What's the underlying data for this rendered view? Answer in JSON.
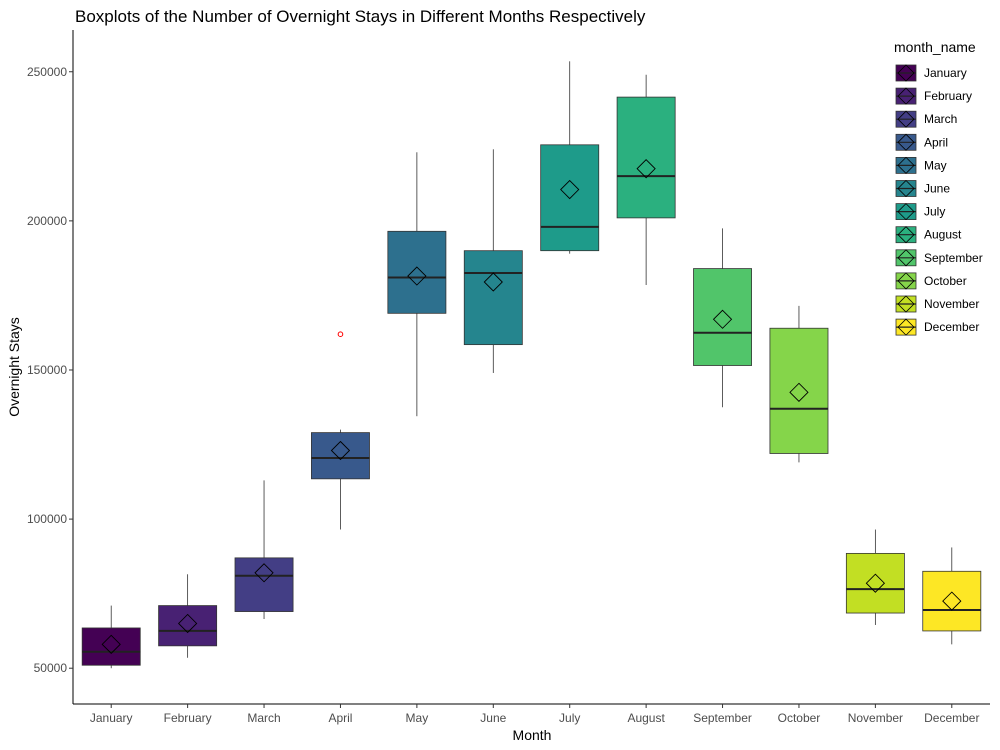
{
  "chart_data": {
    "type": "boxplot",
    "title": "Boxplots of the Number of Overnight Stays in Different Months Respectively",
    "xlabel": "Month",
    "ylabel": "Overnight Stays",
    "ylim": [
      38000,
      264000
    ],
    "y_ticks": [
      50000,
      100000,
      150000,
      200000,
      250000
    ],
    "y_tick_labels": [
      "50000",
      "100000",
      "150000",
      "200000",
      "250000"
    ],
    "grid": false,
    "legend": {
      "title": "month_name",
      "position": "right-top"
    },
    "mean_marker": "diamond",
    "outlier_color": "#ff0000",
    "categories": [
      "January",
      "February",
      "March",
      "April",
      "May",
      "June",
      "July",
      "August",
      "September",
      "October",
      "November",
      "December"
    ],
    "boxes": [
      {
        "name": "January",
        "color": "#440154",
        "min": 50000,
        "q1": 51000,
        "median": 55500,
        "q3": 63500,
        "max": 71000,
        "mean": 58000,
        "outliers": []
      },
      {
        "name": "February",
        "color": "#482173",
        "min": 53500,
        "q1": 57500,
        "median": 62500,
        "q3": 71000,
        "max": 81500,
        "mean": 65000,
        "outliers": []
      },
      {
        "name": "March",
        "color": "#433E85",
        "min": 66500,
        "q1": 69000,
        "median": 81000,
        "q3": 87000,
        "max": 113000,
        "mean": 82000,
        "outliers": []
      },
      {
        "name": "April",
        "color": "#38598C",
        "min": 96500,
        "q1": 113500,
        "median": 120500,
        "q3": 129000,
        "max": 130000,
        "mean": 123000,
        "outliers": [
          162000
        ]
      },
      {
        "name": "May",
        "color": "#2D708E",
        "min": 134500,
        "q1": 169000,
        "median": 181000,
        "q3": 196500,
        "max": 223000,
        "mean": 181500,
        "outliers": []
      },
      {
        "name": "June",
        "color": "#25858E",
        "min": 149000,
        "q1": 158500,
        "median": 182500,
        "q3": 190000,
        "max": 224000,
        "mean": 179500,
        "outliers": []
      },
      {
        "name": "July",
        "color": "#1E9B8A",
        "min": 189000,
        "q1": 190000,
        "median": 198000,
        "q3": 225500,
        "max": 253500,
        "mean": 210500,
        "outliers": []
      },
      {
        "name": "August",
        "color": "#2BB07F",
        "min": 178500,
        "q1": 201000,
        "median": 215000,
        "q3": 241500,
        "max": 249000,
        "mean": 217500,
        "outliers": []
      },
      {
        "name": "September",
        "color": "#51C56A",
        "min": 137500,
        "q1": 151500,
        "median": 162500,
        "q3": 184000,
        "max": 197500,
        "mean": 167000,
        "outliers": []
      },
      {
        "name": "October",
        "color": "#85D54A",
        "min": 119000,
        "q1": 122000,
        "median": 137000,
        "q3": 164000,
        "max": 171500,
        "mean": 142500,
        "outliers": []
      },
      {
        "name": "November",
        "color": "#C2DF23",
        "min": 64500,
        "q1": 68500,
        "median": 76500,
        "q3": 88500,
        "max": 96500,
        "mean": 78500,
        "outliers": []
      },
      {
        "name": "December",
        "color": "#FDE725",
        "min": 58000,
        "q1": 62500,
        "median": 69500,
        "q3": 82500,
        "max": 90500,
        "mean": 72500,
        "outliers": []
      }
    ]
  }
}
